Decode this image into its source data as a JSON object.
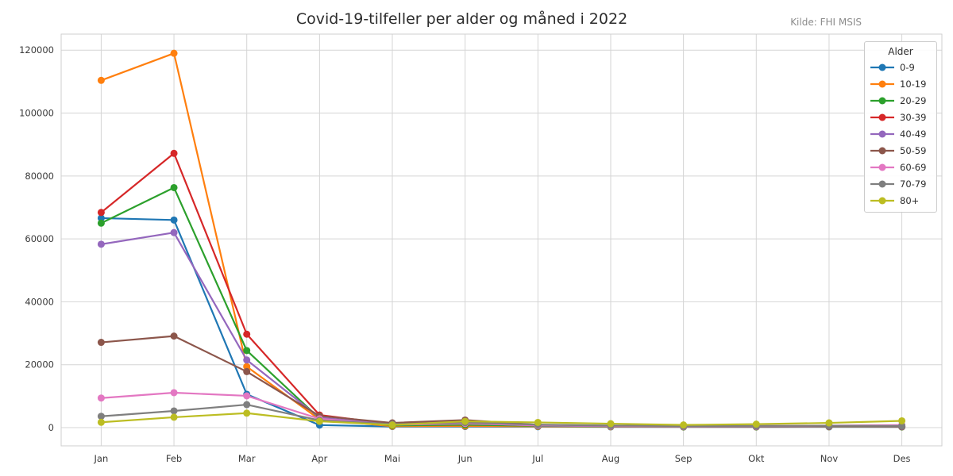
{
  "chart_data": {
    "type": "line",
    "title": "Covid-19-tilfeller per alder og måned i 2022",
    "source": "Kilde: FHI MSIS",
    "legend_title": "Alder",
    "legend_position": "upper right",
    "grid": true,
    "marker": "circle",
    "x": [
      "Jan",
      "Feb",
      "Mar",
      "Apr",
      "Mai",
      "Jun",
      "Jul",
      "Aug",
      "Sep",
      "Okt",
      "Nov",
      "Des"
    ],
    "xlabel": "",
    "ylabel": "",
    "yticks": [
      0,
      20000,
      40000,
      60000,
      80000,
      100000,
      120000
    ],
    "ylim": [
      -5800,
      125100
    ],
    "series": [
      {
        "name": "0-9",
        "color": "#1f77b4",
        "values": [
          66600,
          66000,
          10600,
          800,
          350,
          350,
          300,
          250,
          200,
          200,
          250,
          200
        ]
      },
      {
        "name": "10-19",
        "color": "#ff7f0e",
        "values": [
          110400,
          119000,
          19400,
          2600,
          450,
          500,
          400,
          300,
          250,
          250,
          300,
          250
        ]
      },
      {
        "name": "20-29",
        "color": "#2ca02c",
        "values": [
          65000,
          76300,
          24500,
          2900,
          700,
          900,
          550,
          400,
          300,
          300,
          350,
          300
        ]
      },
      {
        "name": "30-39",
        "color": "#d62728",
        "values": [
          68400,
          87200,
          29700,
          4000,
          1100,
          1700,
          800,
          550,
          400,
          400,
          450,
          400
        ]
      },
      {
        "name": "40-49",
        "color": "#9467bd",
        "values": [
          58300,
          62000,
          21500,
          3200,
          1000,
          1400,
          650,
          450,
          350,
          350,
          400,
          350
        ]
      },
      {
        "name": "50-59",
        "color": "#8c564b",
        "values": [
          27100,
          29100,
          17800,
          3700,
          1500,
          2400,
          900,
          600,
          450,
          450,
          500,
          450
        ]
      },
      {
        "name": "60-69",
        "color": "#e377c2",
        "values": [
          9400,
          11100,
          10100,
          2800,
          900,
          1300,
          750,
          550,
          450,
          500,
          650,
          800
        ]
      },
      {
        "name": "70-79",
        "color": "#7f7f7f",
        "values": [
          3600,
          5300,
          7300,
          2300,
          1100,
          1600,
          950,
          650,
          500,
          550,
          600,
          550
        ]
      },
      {
        "name": "80+",
        "color": "#bcbd22",
        "values": [
          1700,
          3300,
          4600,
          2000,
          850,
          2000,
          1650,
          1250,
          850,
          1100,
          1500,
          2150
        ]
      }
    ]
  }
}
